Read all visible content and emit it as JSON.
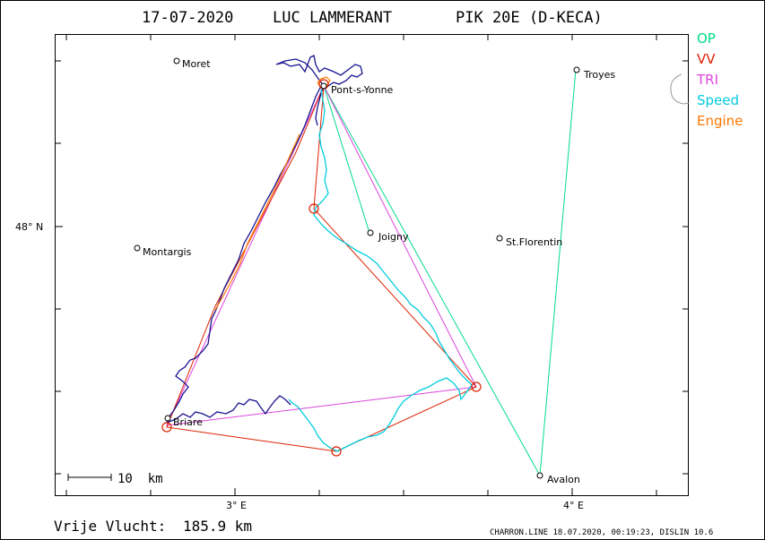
{
  "header": {
    "date": "17-07-2020",
    "pilot": "LUC LAMMERANT",
    "glider": "PIK 20E (D-KECA)"
  },
  "legend": [
    {
      "label": "OP",
      "color": "#00dd88"
    },
    {
      "label": "VV",
      "color": "#dd2200"
    },
    {
      "label": "TRI",
      "color": "#dd44dd"
    },
    {
      "label": "Speed",
      "color": "#00ccdd"
    },
    {
      "label": "Engine",
      "color": "#ff7700"
    }
  ],
  "axes": {
    "lat_label": "48° N",
    "lon_labels": [
      "3° E",
      "4° E"
    ]
  },
  "scale_bar": {
    "label": "10  km"
  },
  "towns": [
    {
      "name": "Moret"
    },
    {
      "name": "Pont-s-Yonne"
    },
    {
      "name": "Troyes"
    },
    {
      "name": "Montargis"
    },
    {
      "name": "Joigny"
    },
    {
      "name": "St.Florentin"
    },
    {
      "name": "Briare"
    },
    {
      "name": "Avalon"
    }
  ],
  "footer": {
    "distance_label": "Vrije Vlucht:",
    "distance_value": "185.9 km",
    "credits": "CHARRON.LINE 18.07.2020, 00:19:23, DISLIN 10.6"
  },
  "colors": {
    "frame": "#000000",
    "track": "#1a1490",
    "op": "#00dd88",
    "vv": "#dd2200",
    "tri": "#dd44dd",
    "speed": "#00ccdd",
    "engine": "#ff7700",
    "border": "#888888"
  }
}
